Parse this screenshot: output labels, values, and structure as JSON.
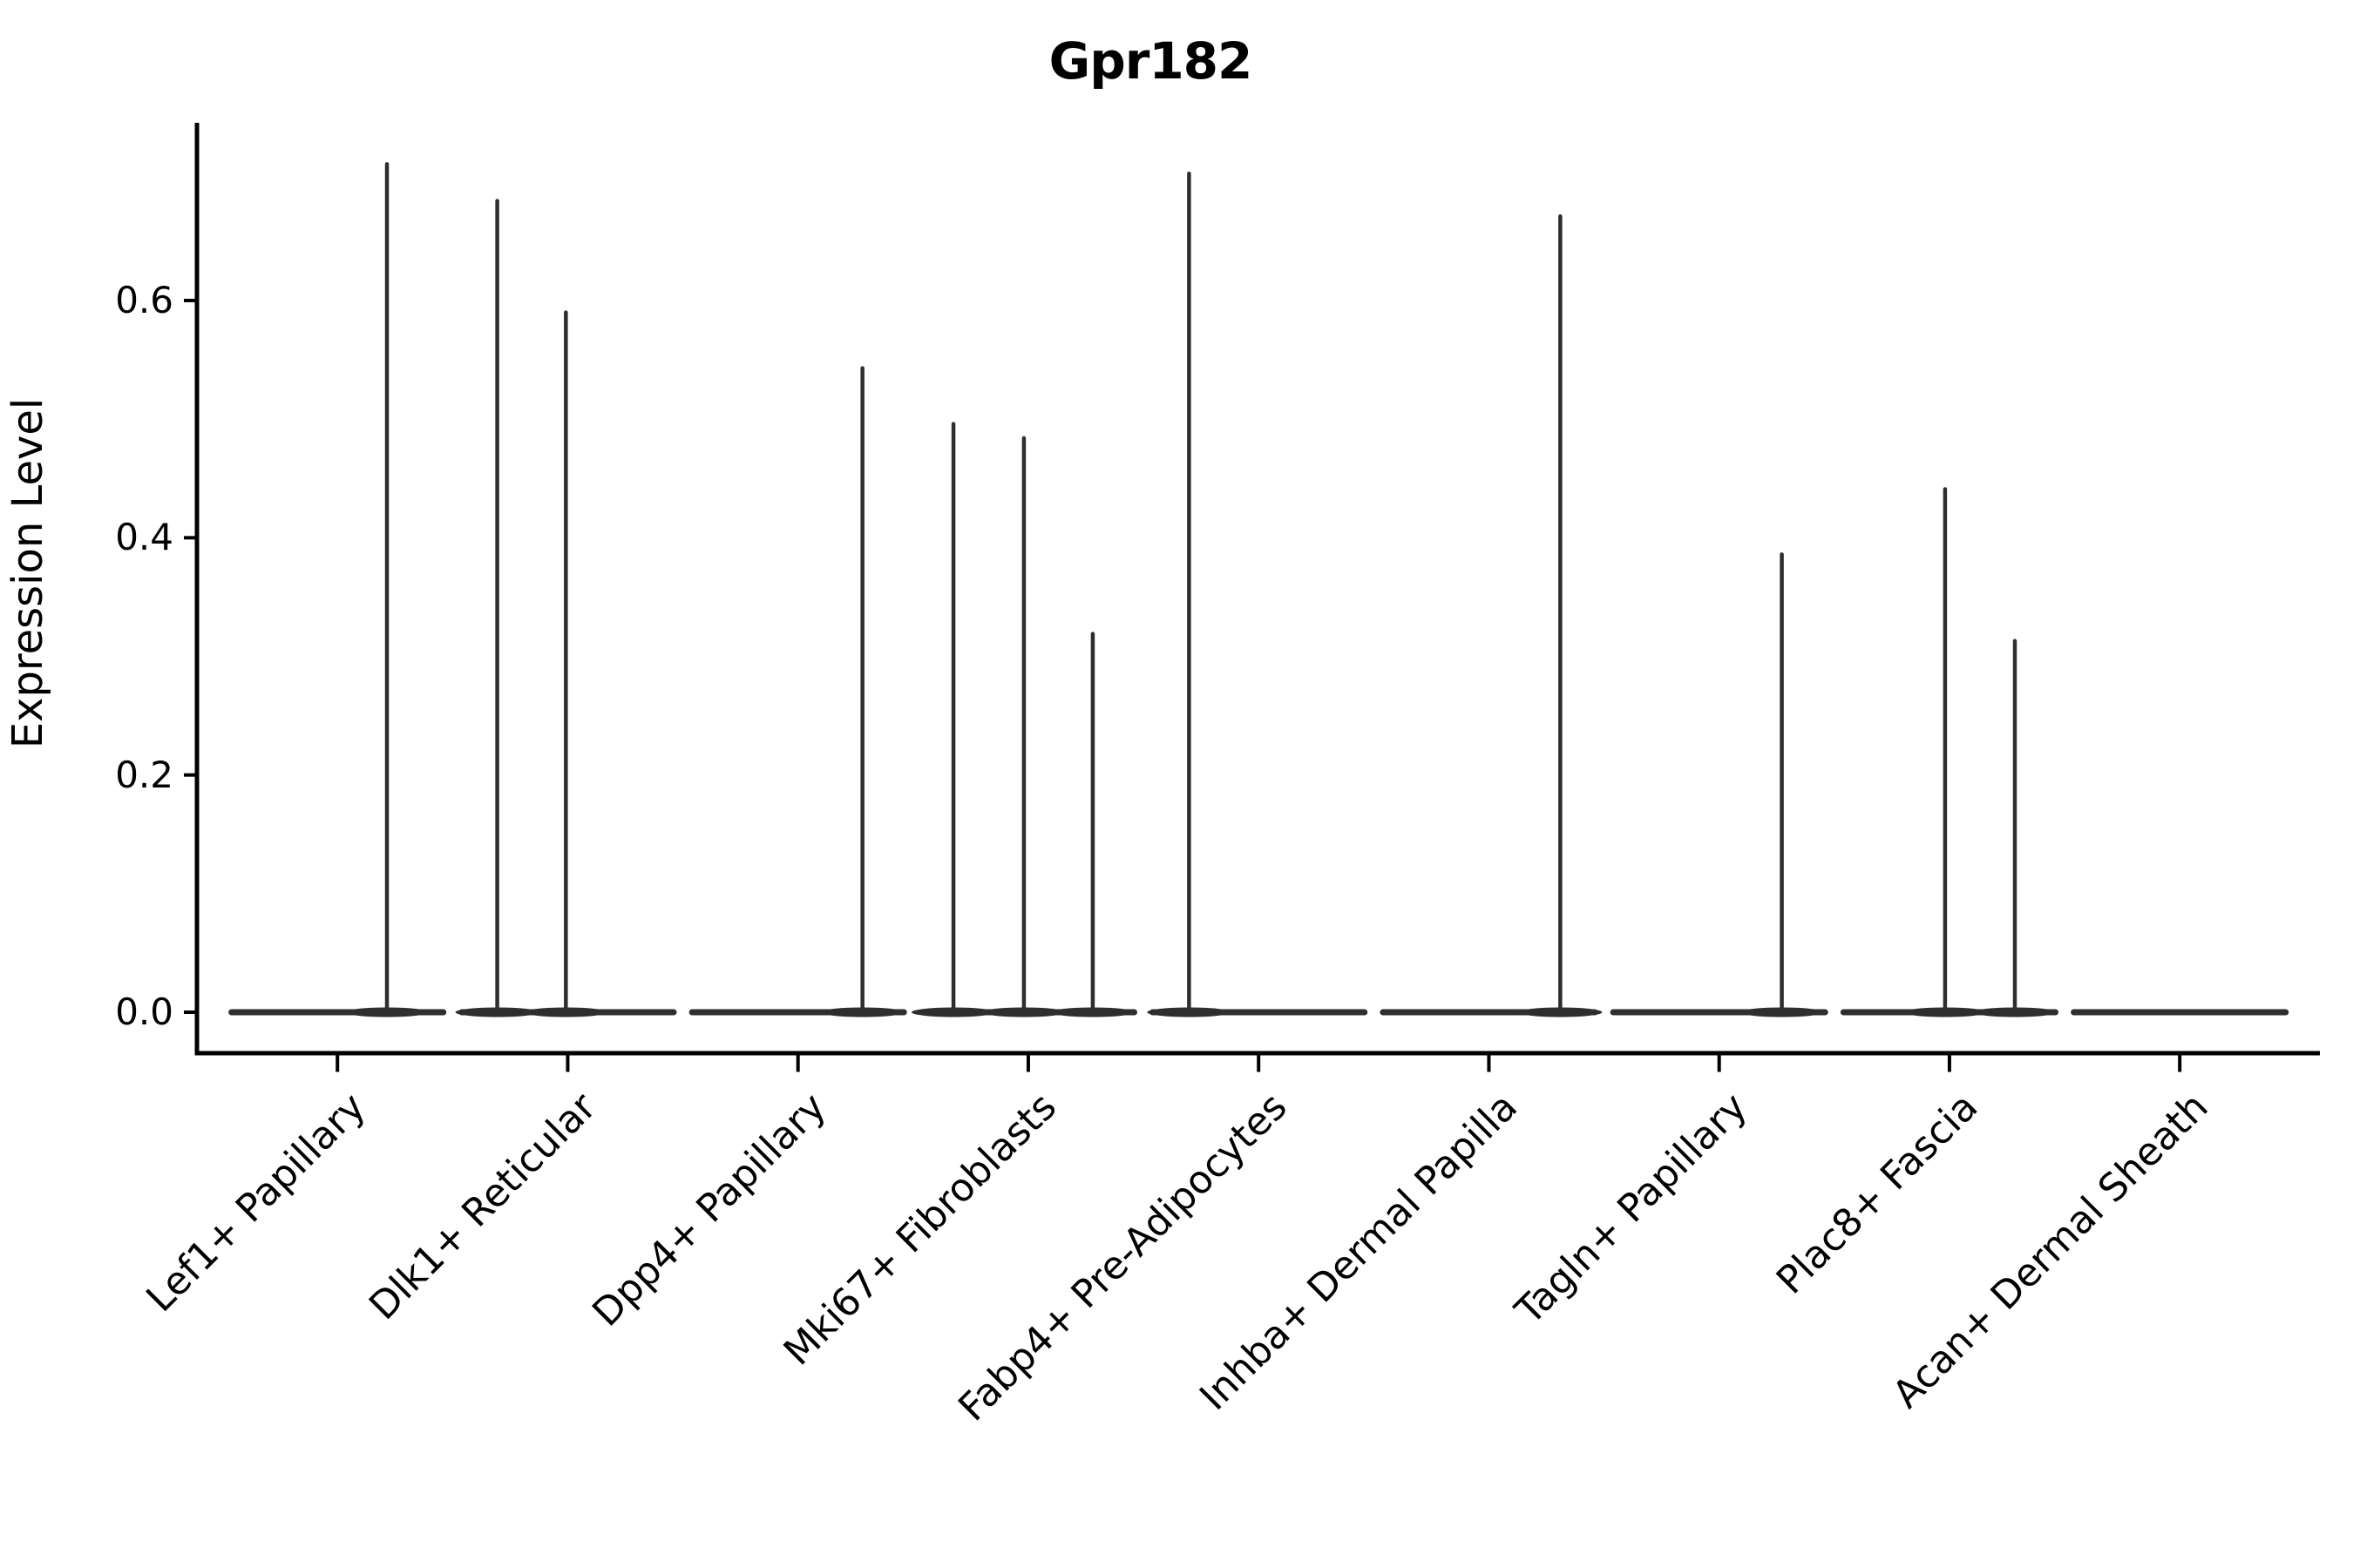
{
  "chart_data": {
    "type": "violin",
    "title": "Gpr182",
    "ylabel": "Expression Level",
    "xlabel": "",
    "ytick_labels": [
      "0.0",
      "0.2",
      "0.4",
      "0.6"
    ],
    "ytick_values": [
      0.0,
      0.2,
      0.4,
      0.6
    ],
    "ylim": [
      -0.034,
      0.75
    ],
    "grid": false,
    "legend": "none",
    "violin_color": "#2e2e2e",
    "axis_color": "#000000",
    "base_halfwidth_slots": 0.46,
    "categories": [
      "Lef1+ Papillary",
      "Dlk1+ Reticular",
      "Dpp4+ Papillary",
      "Mki67+ Fibroblasts",
      "Fabp4+ Pre-Adipocytes",
      "Inhba+ Dermal Papilla",
      "Tagln+ Papillary",
      "Plac8+ Fascia",
      "Acan+ Dermal Sheath"
    ],
    "violins": [
      {
        "category": "Lef1+ Papillary",
        "zero_bulk": true,
        "spikes": [
          {
            "offset": 0.215,
            "value": 0.715
          }
        ]
      },
      {
        "category": "Dlk1+ Reticular",
        "zero_bulk": true,
        "spikes": [
          {
            "offset": -0.306,
            "value": 0.684
          },
          {
            "offset": -0.008,
            "value": 0.59
          }
        ]
      },
      {
        "category": "Dpp4+ Papillary",
        "zero_bulk": true,
        "spikes": [
          {
            "offset": 0.28,
            "value": 0.543
          }
        ]
      },
      {
        "category": "Mki67+ Fibroblasts",
        "zero_bulk": true,
        "spikes": [
          {
            "offset": -0.325,
            "value": 0.496
          },
          {
            "offset": -0.019,
            "value": 0.484
          },
          {
            "offset": 0.28,
            "value": 0.319
          }
        ]
      },
      {
        "category": "Fabp4+ Pre-Adipocytes",
        "zero_bulk": true,
        "spikes": [
          {
            "offset": -0.302,
            "value": 0.707
          }
        ]
      },
      {
        "category": "Inhba+ Dermal Papilla",
        "zero_bulk": true,
        "spikes": [
          {
            "offset": 0.31,
            "value": 0.671
          }
        ]
      },
      {
        "category": "Tagln+ Papillary",
        "zero_bulk": true,
        "spikes": [
          {
            "offset": 0.272,
            "value": 0.386
          }
        ]
      },
      {
        "category": "Plac8+ Fascia",
        "zero_bulk": true,
        "spikes": [
          {
            "offset": -0.019,
            "value": 0.441
          },
          {
            "offset": 0.284,
            "value": 0.313
          }
        ]
      },
      {
        "category": "Acan+ Dermal Sheath",
        "zero_bulk": true,
        "spikes": []
      }
    ]
  }
}
